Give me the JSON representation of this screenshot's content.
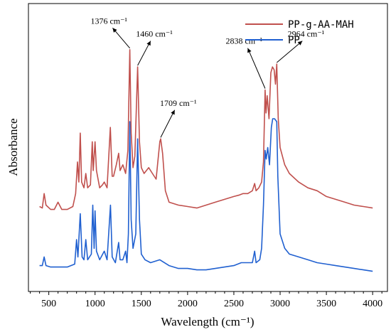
{
  "chart_data": {
    "type": "line",
    "title": "",
    "xlabel": "Wavelength (cm⁻¹)",
    "ylabel": "Absorbance",
    "xlim": [
      280,
      4160
    ],
    "ylim": [
      0,
      1
    ],
    "x_ticks": [
      500,
      1000,
      1500,
      2000,
      2500,
      3000,
      3500,
      4000
    ],
    "x_tick_labels": [
      "500",
      "1000",
      "1500",
      "2000",
      "2500",
      "3000",
      "3500",
      "4000"
    ],
    "y_ticks_shown": false,
    "grid": false,
    "legend_position": "top-right",
    "series": [
      {
        "name": "PP-g-AA-MAH",
        "color": "#c0504d",
        "points": [
          [
            400,
            0.295
          ],
          [
            430,
            0.29
          ],
          [
            450,
            0.34
          ],
          [
            470,
            0.3
          ],
          [
            520,
            0.285
          ],
          [
            560,
            0.285
          ],
          [
            600,
            0.31
          ],
          [
            640,
            0.285
          ],
          [
            700,
            0.285
          ],
          [
            760,
            0.295
          ],
          [
            790,
            0.34
          ],
          [
            810,
            0.45
          ],
          [
            825,
            0.38
          ],
          [
            840,
            0.55
          ],
          [
            855,
            0.38
          ],
          [
            880,
            0.36
          ],
          [
            900,
            0.41
          ],
          [
            920,
            0.36
          ],
          [
            950,
            0.37
          ],
          [
            970,
            0.52
          ],
          [
            980,
            0.42
          ],
          [
            1000,
            0.52
          ],
          [
            1015,
            0.42
          ],
          [
            1050,
            0.36
          ],
          [
            1080,
            0.37
          ],
          [
            1100,
            0.38
          ],
          [
            1130,
            0.36
          ],
          [
            1165,
            0.57
          ],
          [
            1185,
            0.4
          ],
          [
            1200,
            0.4
          ],
          [
            1230,
            0.44
          ],
          [
            1255,
            0.48
          ],
          [
            1270,
            0.42
          ],
          [
            1300,
            0.44
          ],
          [
            1330,
            0.41
          ],
          [
            1355,
            0.49
          ],
          [
            1376,
            0.84
          ],
          [
            1390,
            0.55
          ],
          [
            1410,
            0.43
          ],
          [
            1430,
            0.47
          ],
          [
            1460,
            0.78
          ],
          [
            1480,
            0.52
          ],
          [
            1500,
            0.43
          ],
          [
            1530,
            0.41
          ],
          [
            1580,
            0.43
          ],
          [
            1620,
            0.41
          ],
          [
            1660,
            0.39
          ],
          [
            1700,
            0.52
          ],
          [
            1709,
            0.53
          ],
          [
            1730,
            0.48
          ],
          [
            1760,
            0.35
          ],
          [
            1800,
            0.31
          ],
          [
            1900,
            0.3
          ],
          [
            2000,
            0.295
          ],
          [
            2100,
            0.29
          ],
          [
            2200,
            0.3
          ],
          [
            2300,
            0.31
          ],
          [
            2400,
            0.32
          ],
          [
            2500,
            0.33
          ],
          [
            2560,
            0.335
          ],
          [
            2600,
            0.34
          ],
          [
            2650,
            0.34
          ],
          [
            2700,
            0.35
          ],
          [
            2725,
            0.375
          ],
          [
            2740,
            0.35
          ],
          [
            2770,
            0.36
          ],
          [
            2800,
            0.38
          ],
          [
            2820,
            0.45
          ],
          [
            2838,
            0.7
          ],
          [
            2848,
            0.62
          ],
          [
            2860,
            0.68
          ],
          [
            2880,
            0.6
          ],
          [
            2900,
            0.76
          ],
          [
            2918,
            0.78
          ],
          [
            2935,
            0.77
          ],
          [
            2950,
            0.72
          ],
          [
            2964,
            0.79
          ],
          [
            2980,
            0.6
          ],
          [
            3000,
            0.5
          ],
          [
            3050,
            0.44
          ],
          [
            3100,
            0.41
          ],
          [
            3200,
            0.38
          ],
          [
            3300,
            0.36
          ],
          [
            3400,
            0.35
          ],
          [
            3500,
            0.33
          ],
          [
            3600,
            0.32
          ],
          [
            3700,
            0.31
          ],
          [
            3800,
            0.3
          ],
          [
            3900,
            0.295
          ],
          [
            4000,
            0.29
          ]
        ]
      },
      {
        "name": "PP",
        "color": "#2060d0",
        "points": [
          [
            400,
            0.09
          ],
          [
            430,
            0.09
          ],
          [
            450,
            0.12
          ],
          [
            470,
            0.09
          ],
          [
            520,
            0.085
          ],
          [
            600,
            0.085
          ],
          [
            700,
            0.085
          ],
          [
            780,
            0.095
          ],
          [
            800,
            0.18
          ],
          [
            815,
            0.12
          ],
          [
            840,
            0.27
          ],
          [
            860,
            0.12
          ],
          [
            880,
            0.11
          ],
          [
            900,
            0.18
          ],
          [
            920,
            0.11
          ],
          [
            960,
            0.13
          ],
          [
            975,
            0.3
          ],
          [
            990,
            0.15
          ],
          [
            1000,
            0.28
          ],
          [
            1015,
            0.14
          ],
          [
            1050,
            0.11
          ],
          [
            1100,
            0.14
          ],
          [
            1130,
            0.11
          ],
          [
            1167,
            0.3
          ],
          [
            1185,
            0.12
          ],
          [
            1220,
            0.1
          ],
          [
            1255,
            0.17
          ],
          [
            1270,
            0.11
          ],
          [
            1300,
            0.11
          ],
          [
            1330,
            0.14
          ],
          [
            1345,
            0.1
          ],
          [
            1360,
            0.2
          ],
          [
            1376,
            0.59
          ],
          [
            1390,
            0.25
          ],
          [
            1410,
            0.15
          ],
          [
            1440,
            0.2
          ],
          [
            1460,
            0.53
          ],
          [
            1480,
            0.25
          ],
          [
            1500,
            0.13
          ],
          [
            1540,
            0.11
          ],
          [
            1600,
            0.1
          ],
          [
            1700,
            0.11
          ],
          [
            1800,
            0.09
          ],
          [
            1900,
            0.08
          ],
          [
            2000,
            0.08
          ],
          [
            2100,
            0.075
          ],
          [
            2200,
            0.075
          ],
          [
            2300,
            0.08
          ],
          [
            2400,
            0.085
          ],
          [
            2500,
            0.09
          ],
          [
            2580,
            0.1
          ],
          [
            2650,
            0.1
          ],
          [
            2700,
            0.1
          ],
          [
            2725,
            0.14
          ],
          [
            2740,
            0.1
          ],
          [
            2780,
            0.11
          ],
          [
            2800,
            0.15
          ],
          [
            2820,
            0.3
          ],
          [
            2838,
            0.49
          ],
          [
            2850,
            0.46
          ],
          [
            2866,
            0.5
          ],
          [
            2885,
            0.44
          ],
          [
            2905,
            0.57
          ],
          [
            2920,
            0.6
          ],
          [
            2940,
            0.6
          ],
          [
            2964,
            0.59
          ],
          [
            2975,
            0.4
          ],
          [
            3000,
            0.2
          ],
          [
            3050,
            0.15
          ],
          [
            3100,
            0.13
          ],
          [
            3200,
            0.12
          ],
          [
            3300,
            0.11
          ],
          [
            3400,
            0.1
          ],
          [
            3500,
            0.095
          ],
          [
            3600,
            0.09
          ],
          [
            3700,
            0.085
          ],
          [
            3800,
            0.08
          ],
          [
            3900,
            0.075
          ],
          [
            4000,
            0.07
          ]
        ]
      }
    ],
    "annotations": [
      {
        "text": "1376 cm⁻¹",
        "x": 1376,
        "y": 0.84,
        "label_x": 1150,
        "label_y": 0.93
      },
      {
        "text": "1460 cm⁻¹",
        "x": 1460,
        "y": 0.78,
        "label_x": 1640,
        "label_y": 0.885
      },
      {
        "text": "1709 cm⁻¹",
        "x": 1709,
        "y": 0.53,
        "label_x": 1900,
        "label_y": 0.645
      },
      {
        "text": "2838 cm⁻¹",
        "x": 2838,
        "y": 0.7,
        "label_x": 2610,
        "label_y": 0.86
      },
      {
        "text": "2964 cm⁻¹",
        "x": 2964,
        "y": 0.79,
        "label_x": 3280,
        "label_y": 0.885
      }
    ]
  }
}
